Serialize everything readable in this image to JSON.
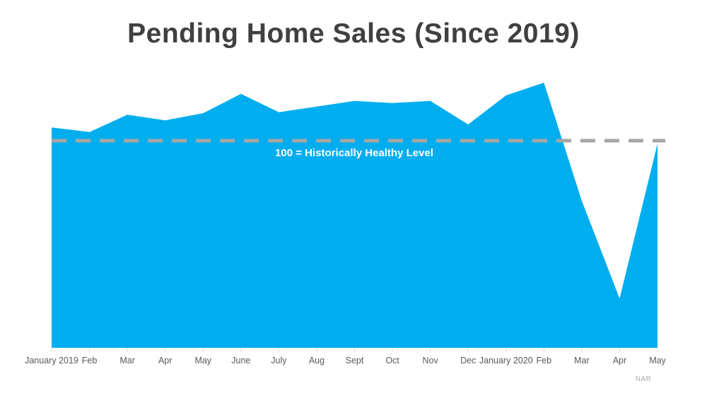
{
  "title": "Pending Home Sales (Since 2019)",
  "source_note": "NAR",
  "colors": {
    "area": "#00AEEF",
    "dashed_line": "#A6A6A6",
    "title_text": "#404040",
    "axis_text": "#595959",
    "tick": "#D9D9D9",
    "reference_text": "#FFFFFF",
    "source_text": "#ABABAB",
    "background": "#FFFFFF"
  },
  "chart_data": {
    "type": "area",
    "title": "Pending Home Sales (Since 2019)",
    "xlabel": "",
    "ylabel": "",
    "categories": [
      "January 2019",
      "Feb",
      "Mar",
      "Apr",
      "May",
      "June",
      "July",
      "Aug",
      "Sept",
      "Oct",
      "Nov",
      "Dec",
      "January 2020",
      "Feb",
      "Mar",
      "Apr",
      "May"
    ],
    "values": [
      102.6,
      101.7,
      105.1,
      104.0,
      105.4,
      109.2,
      105.6,
      106.7,
      107.8,
      107.4,
      107.8,
      103.2,
      108.9,
      111.4,
      88.2,
      69.0,
      99.4
    ],
    "ylim": [
      59,
      116
    ],
    "grid": false,
    "legend": false,
    "y_axis_visible": false,
    "reference_line": {
      "value": 100,
      "label": "100 = Historically Healthy Level",
      "style": "dashed"
    }
  }
}
